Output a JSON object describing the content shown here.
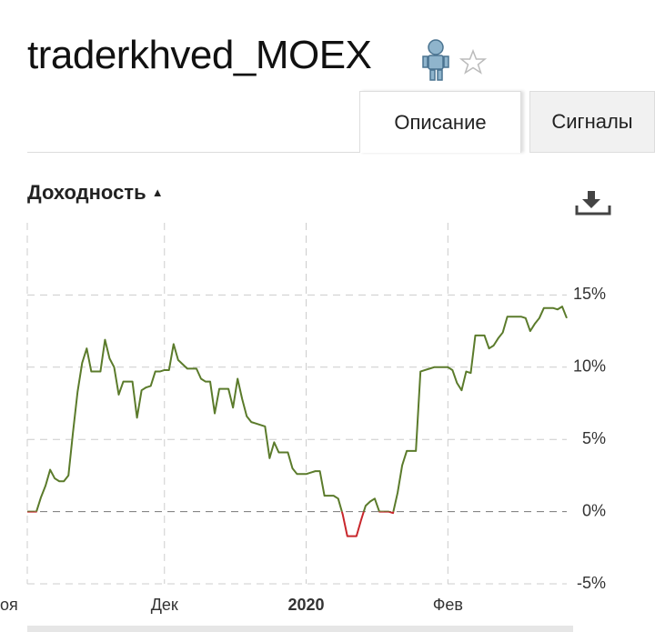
{
  "header": {
    "title": "traderkhved_MOEX",
    "tabs": [
      "Описание",
      "Сигналы"
    ]
  },
  "chart_data": {
    "type": "line",
    "title": "Доходность",
    "categories": [
      "оя",
      null,
      null,
      null,
      null,
      null,
      null,
      null,
      null,
      null,
      null,
      null,
      null,
      null,
      null,
      null,
      null,
      null,
      null,
      null,
      null,
      null,
      null,
      null,
      null,
      null,
      null,
      null,
      null,
      null,
      "Дек",
      null,
      null,
      null,
      null,
      null,
      null,
      null,
      null,
      null,
      null,
      null,
      null,
      null,
      null,
      null,
      null,
      null,
      null,
      null,
      null,
      null,
      null,
      null,
      null,
      null,
      null,
      null,
      null,
      null,
      null,
      "2020",
      null,
      null,
      null,
      null,
      null,
      null,
      null,
      null,
      null,
      null,
      null,
      null,
      null,
      null,
      null,
      null,
      null,
      null,
      null,
      null,
      null,
      null,
      null,
      null,
      null,
      null,
      null,
      null,
      null,
      null,
      "Фев",
      null,
      null,
      null,
      null,
      null,
      null,
      null,
      null,
      null,
      null,
      null,
      null,
      null,
      null,
      null,
      null,
      null,
      null,
      null,
      null,
      null,
      null,
      null,
      null,
      null,
      null
    ],
    "values": [
      0,
      0,
      0,
      1.0,
      1.8,
      2.9,
      2.3,
      2.1,
      2.1,
      2.5,
      5.5,
      8.3,
      10.3,
      11.3,
      9.7,
      9.7,
      9.7,
      11.9,
      10.6,
      10.0,
      8.1,
      9.0,
      9.0,
      9.0,
      6.5,
      8.4,
      8.6,
      8.7,
      9.7,
      9.7,
      9.8,
      9.8,
      11.6,
      10.5,
      10.2,
      9.9,
      9.9,
      9.9,
      9.2,
      9.0,
      9.0,
      6.8,
      8.5,
      8.5,
      8.5,
      7.2,
      9.2,
      7.8,
      6.6,
      6.2,
      6.1,
      6.0,
      5.9,
      3.7,
      4.8,
      4.1,
      4.1,
      4.1,
      3.0,
      2.6,
      2.6,
      2.6,
      2.7,
      2.8,
      2.8,
      1.1,
      1.1,
      1.1,
      0.9,
      -0.2,
      -1.7,
      -1.7,
      -1.7,
      -0.6,
      0.4,
      0.7,
      0.9,
      0,
      0,
      0,
      -0.1,
      1.3,
      3.2,
      4.2,
      4.2,
      4.2,
      9.7,
      9.8,
      9.9,
      10.0,
      10.0,
      10.0,
      10.0,
      9.8,
      8.9,
      8.4,
      9.7,
      9.6,
      12.2,
      12.2,
      12.2,
      11.3,
      11.5,
      12.0,
      12.4,
      13.5,
      13.5,
      13.5,
      13.5,
      13.4,
      12.5,
      13.0,
      13.4,
      14.1,
      14.1,
      14.1,
      14.0,
      14.2,
      13.4
    ],
    "color": "#5b7b2b",
    "negative_color": "#c8262b",
    "ylim": [
      -5,
      20
    ],
    "yticks": [
      {
        "value": -5,
        "label": "-5%"
      },
      {
        "value": 0,
        "label": "0%"
      },
      {
        "value": 5,
        "label": "5%"
      },
      {
        "value": 10,
        "label": "10%"
      },
      {
        "value": 15,
        "label": "15%"
      }
    ],
    "grid": true
  }
}
